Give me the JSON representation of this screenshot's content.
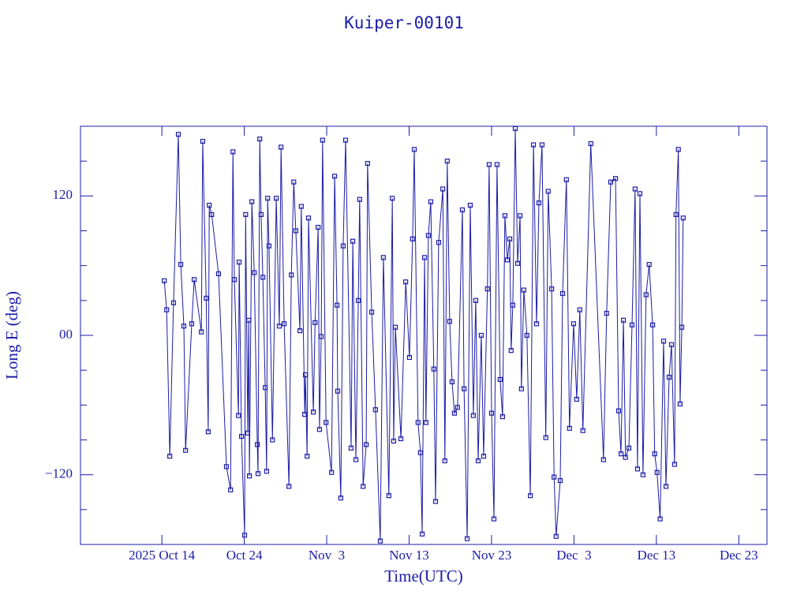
{
  "chart_data": {
    "type": "line",
    "title": "Kuiper-00101",
    "xlabel": "Time(UTC)",
    "ylabel": "Long E (deg)",
    "color": "#1c1ca8",
    "marker": "square",
    "xlim": [
      "2025-10-04T03:00",
      "2025-12-26T10:00"
    ],
    "xticks": [
      {
        "value": "2025-10-14",
        "label": "2025 Oct 14"
      },
      {
        "value": "2025-10-24",
        "label": "Oct 24"
      },
      {
        "value": "2025-11-03",
        "label": "Nov  3"
      },
      {
        "value": "2025-11-13",
        "label": "Nov 13"
      },
      {
        "value": "2025-11-23",
        "label": "Nov 23"
      },
      {
        "value": "2025-12-03",
        "label": "Dec  3"
      },
      {
        "value": "2025-12-13",
        "label": "Dec 13"
      },
      {
        "value": "2025-12-23",
        "label": "Dec 23"
      }
    ],
    "ylim": [
      -180,
      180
    ],
    "yticks": [
      {
        "value": -120,
        "label": "−120"
      },
      {
        "value": 0,
        "label": "00"
      },
      120
    ],
    "yminorticks": [
      -150,
      -90,
      -60,
      -30,
      30,
      60,
      90,
      150
    ],
    "x": [
      "2025-10-14T07:00",
      "2025-10-14T14:00",
      "2025-10-14T23:00",
      "2025-10-15T10:00",
      "2025-10-16T00:00",
      "2025-10-16T07:00",
      "2025-10-16T16:00",
      "2025-10-16T21:00",
      "2025-10-17T15:00",
      "2025-10-17T22:00",
      "2025-10-18T19:00",
      "2025-10-18T23:00",
      "2025-10-19T09:00",
      "2025-10-19T15:00",
      "2025-10-19T18:00",
      "2025-10-20T01:00",
      "2025-10-20T21:00",
      "2025-10-21T20:00",
      "2025-10-22T08:00",
      "2025-10-22T15:00",
      "2025-10-22T19:00",
      "2025-10-23T07:00",
      "2025-10-23T09:00",
      "2025-10-23T16:00",
      "2025-10-24T01:00",
      "2025-10-24T04:00",
      "2025-10-24T10:00",
      "2025-10-24T13:00",
      "2025-10-24T15:00",
      "2025-10-24T22:00",
      "2025-10-25T05:00",
      "2025-10-25T14:00",
      "2025-10-25T16:00",
      "2025-10-25T21:00",
      "2025-10-26T01:00",
      "2025-10-26T06:00",
      "2025-10-26T13:00",
      "2025-10-26T17:00",
      "2025-10-26T20:00",
      "2025-10-27T00:00",
      "2025-10-27T10:00",
      "2025-10-27T21:00",
      "2025-10-28T06:00",
      "2025-10-28T11:00",
      "2025-10-28T20:00",
      "2025-10-29T10:00",
      "2025-10-29T17:00",
      "2025-10-30T00:00",
      "2025-10-30T06:00",
      "2025-10-30T18:00",
      "2025-10-30T22:00",
      "2025-10-31T08:00",
      "2025-10-31T10:00",
      "2025-10-31T15:00",
      "2025-10-31T19:00",
      "2025-11-01T09:00",
      "2025-11-01T14:00",
      "2025-11-01T23:00",
      "2025-11-02T03:00",
      "2025-11-02T08:00",
      "2025-11-02T12:00",
      "2025-11-02T22:00",
      "2025-11-03T14:00",
      "2025-11-03T23:00",
      "2025-11-04T06:00",
      "2025-11-04T08:00",
      "2025-11-04T17:00",
      "2025-11-05T00:00",
      "2025-11-05T07:00",
      "2025-11-05T23:00",
      "2025-11-06T04:00",
      "2025-11-06T13:00",
      "2025-11-06T20:00",
      "2025-11-07T00:00",
      "2025-11-07T10:00",
      "2025-11-07T19:00",
      "2025-11-07T23:00",
      "2025-11-08T11:00",
      "2025-11-08T22:00",
      "2025-11-09T12:00",
      "2025-11-09T21:00",
      "2025-11-10T13:00",
      "2025-11-10T23:00",
      "2025-11-11T03:00",
      "2025-11-11T08:00",
      "2025-11-12T00:00",
      "2025-11-12T14:00",
      "2025-11-13T01:00",
      "2025-11-13T10:00",
      "2025-11-13T15:00",
      "2025-11-14T02:00",
      "2025-11-14T09:00",
      "2025-11-14T14:00",
      "2025-11-14T21:00",
      "2025-11-15T01:00",
      "2025-11-15T08:00",
      "2025-11-15T15:00",
      "2025-11-16T00:00",
      "2025-11-16T05:00",
      "2025-11-16T14:00",
      "2025-11-17T02:00",
      "2025-11-17T08:00",
      "2025-11-17T15:00",
      "2025-11-17T22:00",
      "2025-11-18T05:00",
      "2025-11-18T12:00",
      "2025-11-18T21:00",
      "2025-11-19T11:00",
      "2025-11-19T16:00",
      "2025-11-20T01:00",
      "2025-11-20T10:00",
      "2025-11-20T19:00",
      "2025-11-21T02:00",
      "2025-11-21T09:00",
      "2025-11-21T18:00",
      "2025-11-22T01:00",
      "2025-11-22T12:00",
      "2025-11-22T17:00",
      "2025-11-23T00:00",
      "2025-11-23T07:00",
      "2025-11-23T16:00",
      "2025-11-24T01:00",
      "2025-11-24T08:00",
      "2025-11-24T15:00",
      "2025-11-24T22:00",
      "2025-11-25T05:00",
      "2025-11-25T09:00",
      "2025-11-25T14:00",
      "2025-11-25T21:00",
      "2025-11-26T04:00",
      "2025-11-26T11:00",
      "2025-11-26T15:00",
      "2025-11-26T22:00",
      "2025-11-27T07:00",
      "2025-11-27T17:00",
      "2025-11-28T02:00",
      "2025-11-28T11:00",
      "2025-11-28T18:00",
      "2025-11-29T03:00",
      "2025-11-29T14:00",
      "2025-11-29T21:00",
      "2025-11-30T07:00",
      "2025-11-30T14:00",
      "2025-11-30T20:00",
      "2025-12-01T08:00",
      "2025-12-01T15:00",
      "2025-12-02T02:00",
      "2025-12-02T11:00",
      "2025-12-02T23:00",
      "2025-12-03T08:00",
      "2025-12-03T17:00",
      "2025-12-04T02:00",
      "2025-12-05T01:00",
      "2025-12-06T14:00",
      "2025-12-06T23:00",
      "2025-12-07T11:00",
      "2025-12-08T01:00",
      "2025-12-08T10:00",
      "2025-12-08T17:00",
      "2025-12-09T00:00",
      "2025-12-09T06:00",
      "2025-12-09T16:00",
      "2025-12-10T01:00",
      "2025-12-10T10:00",
      "2025-12-10T17:00",
      "2025-12-11T00:00",
      "2025-12-11T09:00",
      "2025-12-11T18:00",
      "2025-12-12T03:00",
      "2025-12-12T13:00",
      "2025-12-12T19:00",
      "2025-12-13T02:00",
      "2025-12-13T11:00",
      "2025-12-13T21:00",
      "2025-12-14T04:00",
      "2025-12-14T13:00",
      "2025-12-14T20:00",
      "2025-12-15T05:00",
      "2025-12-15T09:00",
      "2025-12-15T16:00",
      "2025-12-15T21:00",
      "2025-12-16T02:00",
      "2025-12-16T06:00"
    ],
    "values": [
      47,
      22,
      -104,
      28,
      173,
      61,
      8,
      -99,
      10,
      48,
      3,
      167,
      32,
      -83,
      112,
      104,
      53,
      -113,
      -133,
      158,
      48,
      -69,
      63,
      -87,
      -172,
      104,
      -84,
      13,
      -121,
      115,
      54,
      -94,
      -119,
      169,
      104,
      50,
      -45,
      -117,
      118,
      77,
      -90,
      118,
      8,
      162,
      10,
      -130,
      52,
      132,
      90,
      4,
      111,
      -68,
      -34,
      -104,
      101,
      -66,
      11,
      93,
      -81,
      -1,
      168,
      -75,
      -118,
      137,
      26,
      -48,
      -140,
      77,
      168,
      -97,
      81,
      -107,
      30,
      117,
      -130,
      -94,
      148,
      20,
      -64,
      -177,
      67,
      -138,
      118,
      -91,
      7,
      -89,
      46,
      -19,
      83,
      160,
      -75,
      -101,
      -171,
      67,
      -75,
      86,
      115,
      -29,
      -143,
      80,
      126,
      -108,
      150,
      12,
      -40,
      -67,
      -62,
      108,
      -46,
      -175,
      112,
      -69,
      30,
      -108,
      0,
      -104,
      40,
      147,
      -67,
      -158,
      147,
      -38,
      -70,
      103,
      65,
      83,
      -13,
      26,
      178,
      62,
      103,
      -46,
      39,
      0,
      -138,
      164,
      10,
      114,
      164,
      -88,
      124,
      40,
      -122,
      -173,
      -125,
      36,
      134,
      -80,
      10,
      -55,
      22,
      -82,
      165,
      -107,
      19,
      132,
      135,
      -65,
      -102,
      13,
      -105,
      -97,
      9,
      126,
      -115,
      122,
      -120,
      35,
      61,
      9,
      -102,
      -118,
      -158,
      -5,
      -130,
      -36,
      -8,
      -111,
      104,
      160,
      -59,
      7,
      101
    ]
  }
}
